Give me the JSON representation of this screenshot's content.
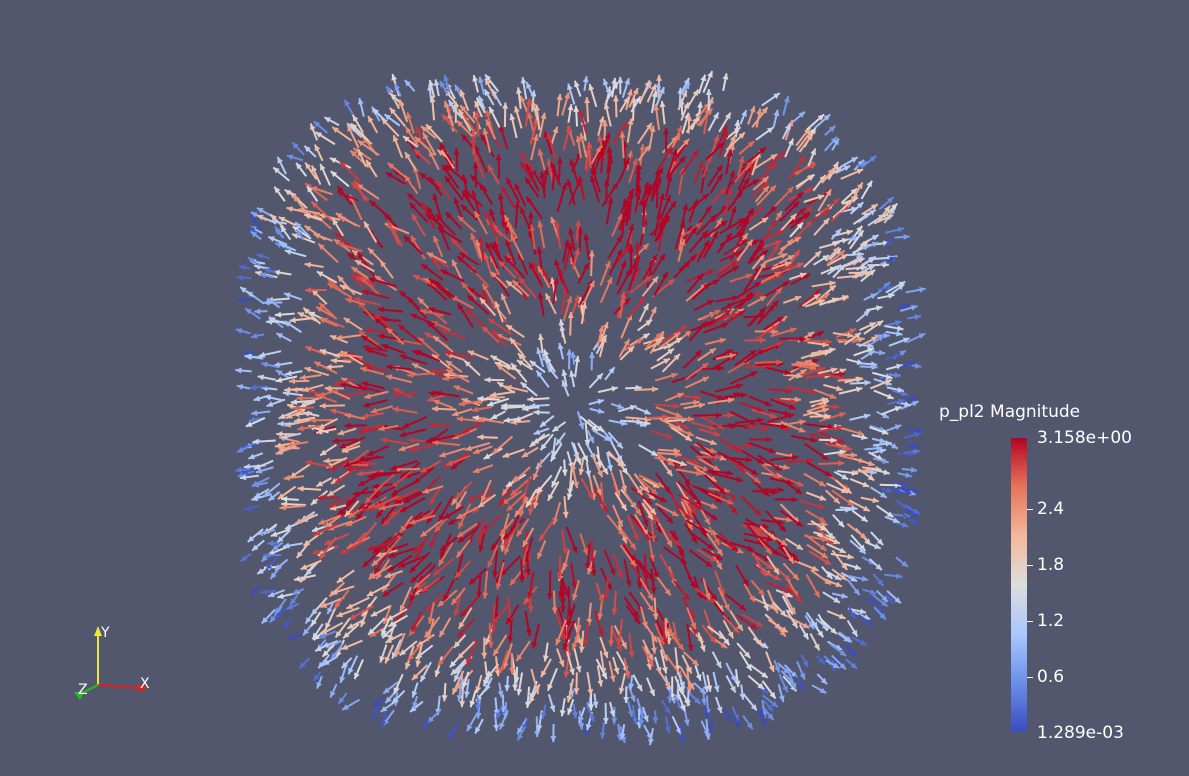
{
  "scalar_bar": {
    "title": "p_pl2 Magnitude",
    "max_label": "3.158e+00",
    "min_label": "1.289e-03",
    "ticks": [
      {
        "label": "2.4",
        "value": 2.4
      },
      {
        "label": "1.8",
        "value": 1.8
      },
      {
        "label": "1.2",
        "value": 1.2
      },
      {
        "label": "0.6",
        "value": 0.6
      }
    ],
    "range": [
      0.001289,
      3.158
    ],
    "colormap": [
      "#3b4cc0",
      "#6b8fe8",
      "#aac7fd",
      "#dddddd",
      "#f4b89c",
      "#e7745b",
      "#b40426"
    ]
  },
  "orientation_axes": {
    "x_label": "X",
    "y_label": "Y",
    "z_label": "Z",
    "x_color": "#e02020",
    "y_color": "#e6e640",
    "z_color": "#20c020"
  },
  "scene": {
    "background": "#52576e",
    "visualization": "3D vector glyph field (arrows radiating from center of a cube)"
  }
}
